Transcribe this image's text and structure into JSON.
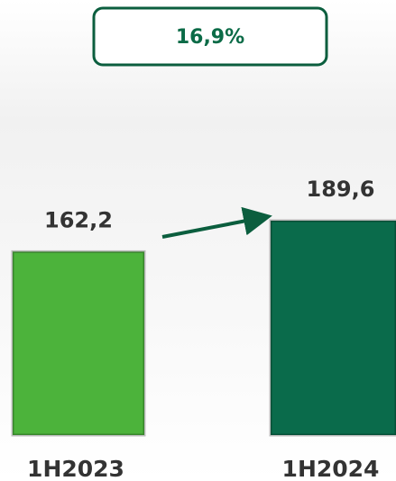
{
  "chart_data": {
    "type": "bar",
    "annotation": "16,9%",
    "categories": [
      "1H2023",
      "1H2024"
    ],
    "values": [
      162.2,
      189.6
    ],
    "value_labels": [
      "162,2",
      "189,6"
    ],
    "colors": [
      "#4cb33b",
      "#0a6b4b"
    ]
  }
}
